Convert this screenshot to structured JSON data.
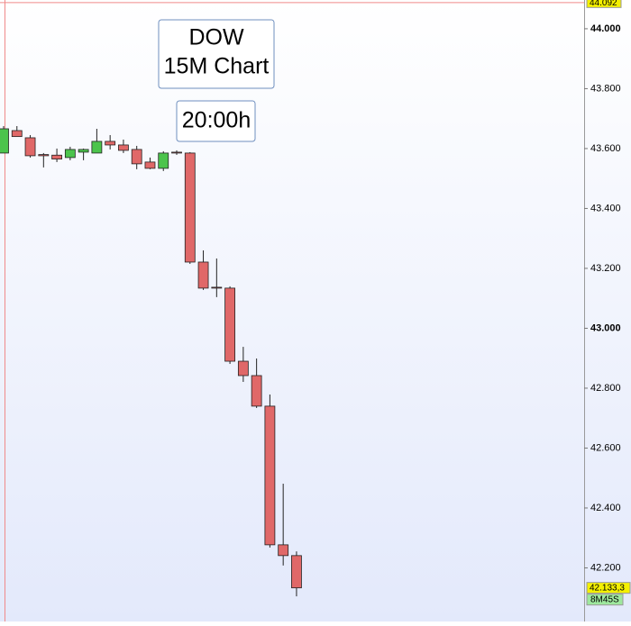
{
  "chart_data": {
    "type": "candlestick",
    "title": "DOW",
    "subtitle": "15M Chart",
    "annotations": [
      "20:00h"
    ],
    "up_color": "#4cc44c",
    "down_color": "#e06868",
    "series": [
      {
        "open": [
          43585,
          43660,
          43636,
          43580,
          43578,
          43570,
          43588,
          43585,
          43624,
          43612,
          43597,
          43555,
          43534,
          43588,
          43585,
          43221,
          43137,
          43134,
          42890,
          42842,
          42740,
          42277,
          42241
        ],
        "high": [
          43675,
          43675,
          43645,
          43585,
          43600,
          43606,
          43600,
          43666,
          43645,
          43630,
          43609,
          43570,
          43591,
          43594,
          43588,
          43260,
          43233,
          43140,
          42938,
          42899,
          42779,
          42481,
          42255
        ],
        "low": [
          43585,
          43640,
          43570,
          43537,
          43555,
          43561,
          43561,
          43585,
          43597,
          43585,
          43531,
          43531,
          43525,
          43579,
          43215,
          43128,
          43104,
          42881,
          42821,
          42734,
          42268,
          42208,
          42105
        ],
        "close": [
          43666,
          43640,
          43576,
          43576,
          43565,
          43597,
          43597,
          43624,
          43612,
          43594,
          43549,
          43534,
          43585,
          43585,
          43221,
          43134,
          43134,
          42890,
          42842,
          42740,
          42277,
          42241,
          42133.3
        ]
      }
    ],
    "ylim": [
      42021,
      44096
    ],
    "yticks": [
      {
        "value": 42200,
        "label": "42.200"
      },
      {
        "value": 42400,
        "label": "42.400"
      },
      {
        "value": 42600,
        "label": "42.600"
      },
      {
        "value": 42800,
        "label": "42.800"
      },
      {
        "value": 43000,
        "label": "43.000"
      },
      {
        "value": 43200,
        "label": "43.200"
      },
      {
        "value": 43400,
        "label": "43.400"
      },
      {
        "value": 43600,
        "label": "43.600"
      },
      {
        "value": 43800,
        "label": "43.800"
      },
      {
        "value": 44000,
        "label": "44.000"
      }
    ],
    "high_marker": {
      "value": 44092,
      "label": "44.092"
    },
    "price_marker": {
      "value": 42133.3,
      "label": "42.133,3"
    },
    "timer": "8M45S"
  }
}
